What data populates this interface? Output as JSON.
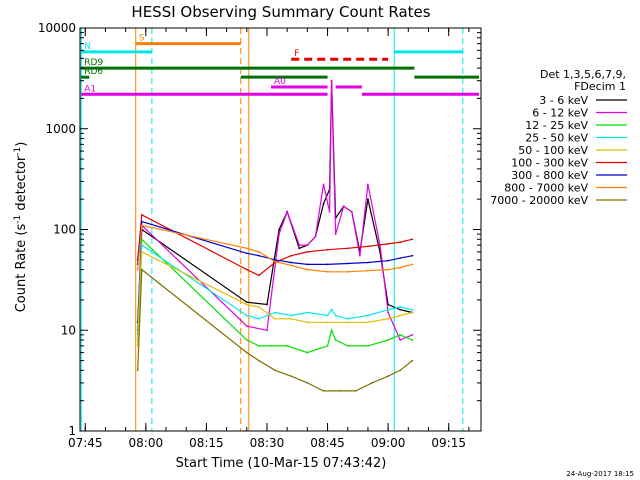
{
  "chart_data": {
    "type": "line",
    "title": "HESSI Observing Summary Count Rates",
    "xlabel": "Start Time (10-Mar-15 07:43:42)",
    "ylabel": "Count Rate (s⁻¹ detector⁻¹)",
    "ylabel_parts": {
      "base": "Count Rate (s",
      "sup1": "-1",
      "mid": " detector",
      "sup2": "-1",
      "end": ")"
    },
    "yscale": "log",
    "xlim": [
      "07:43:42",
      "09:23:00"
    ],
    "ylim": [
      1,
      10000
    ],
    "x_ticks": [
      "07:45",
      "08:00",
      "08:15",
      "08:30",
      "08:45",
      "09:00",
      "09:15"
    ],
    "y_ticks": [
      "1",
      "10",
      "100",
      "1000",
      "10000"
    ],
    "timestamp": "24-Aug-2017 18:15",
    "legend": {
      "title_lines": [
        "Det 1,3,5,6,7,9,",
        "FDecim 1"
      ],
      "entries": [
        {
          "label": "3 - 6 keV",
          "color": "#000000"
        },
        {
          "label": "6 - 12 keV",
          "color": "#e000e0"
        },
        {
          "label": "12 - 25 keV",
          "color": "#00e000"
        },
        {
          "label": "25 - 50 keV",
          "color": "#00e8e8"
        },
        {
          "label": "50 - 100 keV",
          "color": "#e0c000"
        },
        {
          "label": "100 - 300 keV",
          "color": "#e00000"
        },
        {
          "label": "300 - 800 keV",
          "color": "#0000d0"
        },
        {
          "label": "800 - 7000 keV",
          "color": "#ff8000"
        },
        {
          "label": "7000 - 20000 keV",
          "color": "#807000"
        }
      ]
    },
    "flag_bars": [
      {
        "label": "S",
        "color": "#ff8000",
        "segments": [
          [
            "07:57:30",
            "08:23:30"
          ]
        ],
        "y": 7000
      },
      {
        "label": "N",
        "color": "#00e8e8",
        "segments": [
          [
            "07:44:00",
            "08:01:30"
          ],
          [
            "09:01:30",
            "09:18:30"
          ]
        ],
        "y": 5800
      },
      {
        "label": "F",
        "color": "#e00000",
        "dashed": true,
        "segments": [
          [
            "08:36:00",
            "09:00:00"
          ]
        ],
        "y": 4900
      },
      {
        "label": "RD9",
        "color": "#007000",
        "segments": [
          [
            "07:44:00",
            "08:23:30"
          ],
          [
            "08:23:30",
            "09:06:30"
          ]
        ],
        "y": 4000
      },
      {
        "label": "RD6",
        "color": "#007000",
        "segments": [
          [
            "07:44:00",
            "07:46:00"
          ],
          [
            "08:23:30",
            "08:45:00"
          ],
          [
            "09:06:30",
            "09:22:30"
          ]
        ],
        "y": 3250
      },
      {
        "label": "A0",
        "color": "#e000e0",
        "segments": [
          [
            "08:31:00",
            "08:45:00"
          ],
          [
            "08:47:00",
            "08:53:30"
          ]
        ],
        "y": 2600
      },
      {
        "label": "A1",
        "color": "#e000e0",
        "segments": [
          [
            "07:44:00",
            "08:45:00"
          ],
          [
            "08:53:30",
            "09:22:30"
          ]
        ],
        "y": 2200
      }
    ],
    "vlines": [
      {
        "x": "07:44:00",
        "color": "#00e8e8",
        "style": "solid"
      },
      {
        "x": "07:57:30",
        "color": "#ff8000",
        "style": "solid"
      },
      {
        "x": "08:01:30",
        "color": "#00e8e8",
        "style": "dashed"
      },
      {
        "x": "08:23:30",
        "color": "#ff8000",
        "style": "dashed"
      },
      {
        "x": "08:25:30",
        "color": "#ff8000",
        "style": "solid"
      },
      {
        "x": "09:01:30",
        "color": "#00e8e8",
        "style": "solid"
      },
      {
        "x": "09:18:30",
        "color": "#00e8e8",
        "style": "dashed"
      }
    ],
    "series": [
      {
        "name": "3 - 6 keV",
        "color": "#000000",
        "x": [
          "07:58:00",
          "07:59:00",
          "08:25:00",
          "08:30:00",
          "08:33:00",
          "08:35:00",
          "08:38:00",
          "08:40:00",
          "08:42:00",
          "08:44:00",
          "08:45:30",
          "08:46:00",
          "08:47:00",
          "08:49:00",
          "08:51:00",
          "08:53:00",
          "08:55:00",
          "08:58:00",
          "09:00:00",
          "09:03:00",
          "09:06:00"
        ],
        "y": [
          12,
          100,
          19,
          18,
          100,
          150,
          65,
          70,
          85,
          180,
          250,
          3000,
          130,
          170,
          150,
          60,
          200,
          60,
          18,
          16,
          15
        ]
      },
      {
        "name": "6 - 12 keV",
        "color": "#e000e0",
        "x": [
          "07:58:00",
          "07:59:00",
          "08:25:00",
          "08:30:00",
          "08:33:00",
          "08:35:00",
          "08:38:00",
          "08:40:00",
          "08:42:00",
          "08:44:00",
          "08:45:30",
          "08:46:00",
          "08:47:00",
          "08:49:00",
          "08:51:00",
          "08:53:00",
          "08:55:00",
          "08:58:00",
          "09:00:00",
          "09:03:00",
          "09:06:00"
        ],
        "y": [
          10,
          110,
          11,
          10,
          90,
          150,
          70,
          70,
          85,
          280,
          150,
          3000,
          90,
          170,
          150,
          55,
          280,
          70,
          15,
          8,
          9
        ]
      },
      {
        "name": "12 - 25 keV",
        "color": "#00e000",
        "x": [
          "07:58:00",
          "07:59:00",
          "08:25:00",
          "08:28:00",
          "08:31:00",
          "08:35:00",
          "08:40:00",
          "08:45:00",
          "08:46:00",
          "08:47:00",
          "08:50:00",
          "08:55:00",
          "09:00:00",
          "09:03:00",
          "09:06:00"
        ],
        "y": [
          9,
          80,
          8,
          7,
          7,
          7,
          6,
          7,
          10,
          8,
          7,
          7,
          8,
          9,
          8
        ]
      },
      {
        "name": "25 - 50 keV",
        "color": "#00e8e8",
        "x": [
          "07:58:00",
          "07:59:00",
          "08:25:00",
          "08:28:00",
          "08:32:00",
          "08:36:00",
          "08:40:00",
          "08:45:00",
          "08:46:00",
          "08:47:00",
          "08:50:00",
          "08:55:00",
          "09:00:00",
          "09:03:00",
          "09:06:00"
        ],
        "y": [
          8,
          70,
          14,
          13,
          15,
          14,
          15,
          14,
          16,
          14,
          13,
          14,
          16,
          17,
          16
        ]
      },
      {
        "name": "50 - 100 keV",
        "color": "#e0c000",
        "x": [
          "07:58:00",
          "07:59:00",
          "08:25:00",
          "08:28:00",
          "08:32:00",
          "08:36:00",
          "08:40:00",
          "08:45:00",
          "08:50:00",
          "08:55:00",
          "09:00:00",
          "09:03:00",
          "09:06:00"
        ],
        "y": [
          7,
          60,
          18,
          17,
          13,
          13,
          12,
          12,
          12,
          12,
          13,
          14,
          15
        ]
      },
      {
        "name": "100 - 300 keV",
        "color": "#e00000",
        "x": [
          "07:58:00",
          "07:59:00",
          "08:25:00",
          "08:28:00",
          "08:32:00",
          "08:36:00",
          "08:40:00",
          "08:45:00",
          "08:50:00",
          "08:55:00",
          "09:00:00",
          "09:03:00",
          "09:06:00"
        ],
        "y": [
          50,
          140,
          40,
          35,
          47,
          55,
          60,
          63,
          65,
          68,
          72,
          75,
          80
        ]
      },
      {
        "name": "300 - 800 keV",
        "color": "#0000d0",
        "x": [
          "07:58:00",
          "07:59:00",
          "08:25:00",
          "08:28:00",
          "08:32:00",
          "08:36:00",
          "08:40:00",
          "08:45:00",
          "08:50:00",
          "08:55:00",
          "09:00:00",
          "09:03:00",
          "09:06:00"
        ],
        "y": [
          45,
          120,
          58,
          55,
          50,
          47,
          45,
          45,
          46,
          47,
          49,
          52,
          55
        ]
      },
      {
        "name": "800 - 7000 keV",
        "color": "#ff8000",
        "x": [
          "07:58:00",
          "07:59:00",
          "08:25:00",
          "08:28:00",
          "08:32:00",
          "08:36:00",
          "08:40:00",
          "08:45:00",
          "08:50:00",
          "08:55:00",
          "09:00:00",
          "09:03:00",
          "09:06:00"
        ],
        "y": [
          40,
          110,
          65,
          60,
          48,
          44,
          40,
          38,
          38,
          39,
          40,
          42,
          45
        ]
      },
      {
        "name": "7000 - 20000 keV",
        "color": "#807000",
        "x": [
          "07:58:00",
          "07:59:00",
          "08:25:00",
          "08:28:00",
          "08:32:00",
          "08:36:00",
          "08:40:00",
          "08:44:00",
          "08:48:00",
          "08:52:00",
          "08:56:00",
          "09:00:00",
          "09:03:00",
          "09:06:00"
        ],
        "y": [
          4,
          40,
          6,
          5,
          4,
          3.5,
          3,
          2.5,
          2.5,
          2.5,
          3,
          3.5,
          4,
          5
        ]
      }
    ]
  }
}
